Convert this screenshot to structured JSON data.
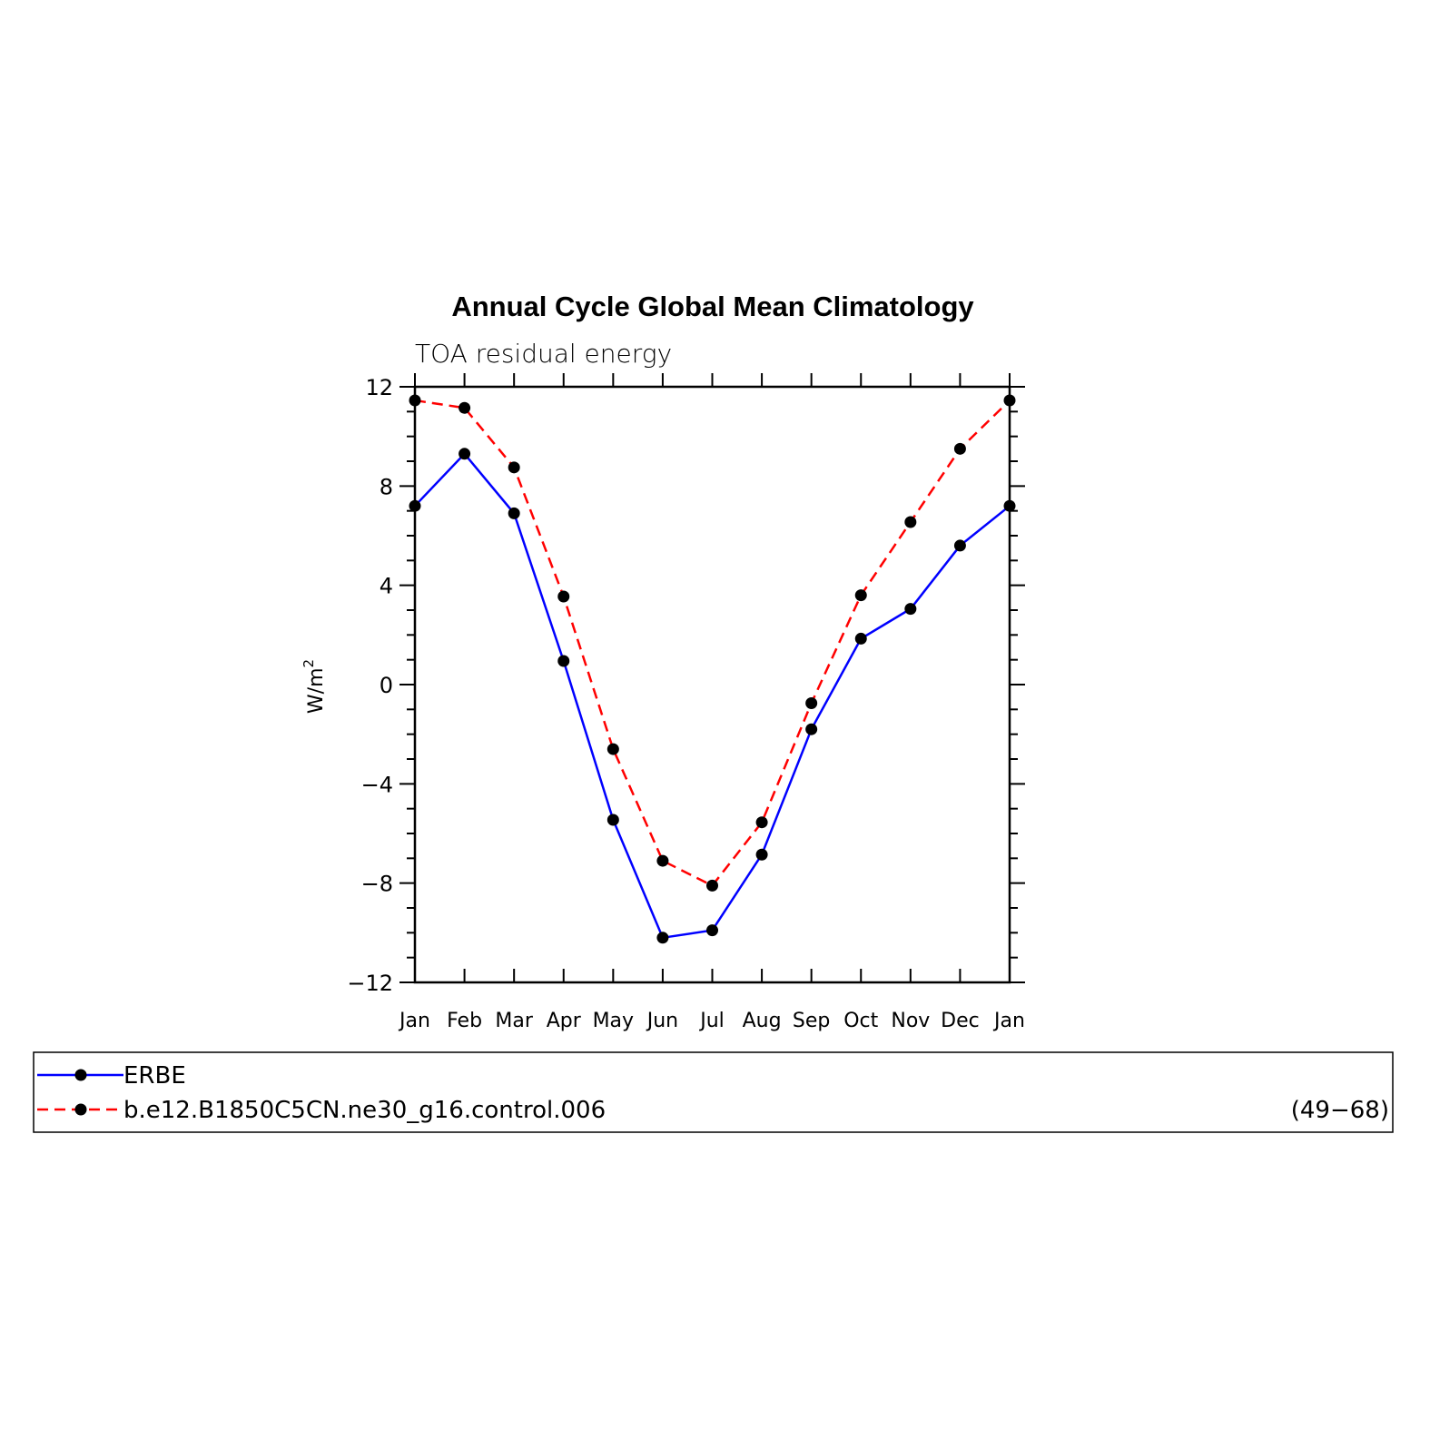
{
  "chart_data": {
    "type": "line",
    "title": "Annual Cycle Global Mean Climatology",
    "subtitle": "TOA residual energy",
    "ylabel": "W/m",
    "ylabel_superscript": "2",
    "categories": [
      "Jan",
      "Feb",
      "Mar",
      "Apr",
      "May",
      "Jun",
      "Jul",
      "Aug",
      "Sep",
      "Oct",
      "Nov",
      "Dec",
      "Jan"
    ],
    "ylim": [
      -12,
      12
    ],
    "yticks": [
      12,
      8,
      4,
      0,
      -4,
      -8,
      -12
    ],
    "yticks_labels": [
      "12",
      "8",
      "4",
      "0",
      "−4",
      "−8",
      "−12"
    ],
    "legend_placement": "bottom",
    "series": [
      {
        "name": "ERBE",
        "color": "#0000ff",
        "dash": "solid",
        "marker": "filled-circle",
        "values": [
          7.2,
          9.3,
          6.9,
          0.95,
          -5.45,
          -10.2,
          -9.9,
          -6.85,
          -1.8,
          1.85,
          3.05,
          5.6,
          7.2
        ]
      },
      {
        "name": "b.e12.B1850C5CN.ne30_g16.control.006",
        "color": "#ff0000",
        "dash": "dashed",
        "marker": "filled-circle",
        "years": "(49−68)",
        "values": [
          11.45,
          11.15,
          8.75,
          3.55,
          -2.6,
          -7.1,
          -8.1,
          -5.55,
          -0.75,
          3.6,
          6.55,
          9.5,
          11.45
        ]
      }
    ]
  }
}
